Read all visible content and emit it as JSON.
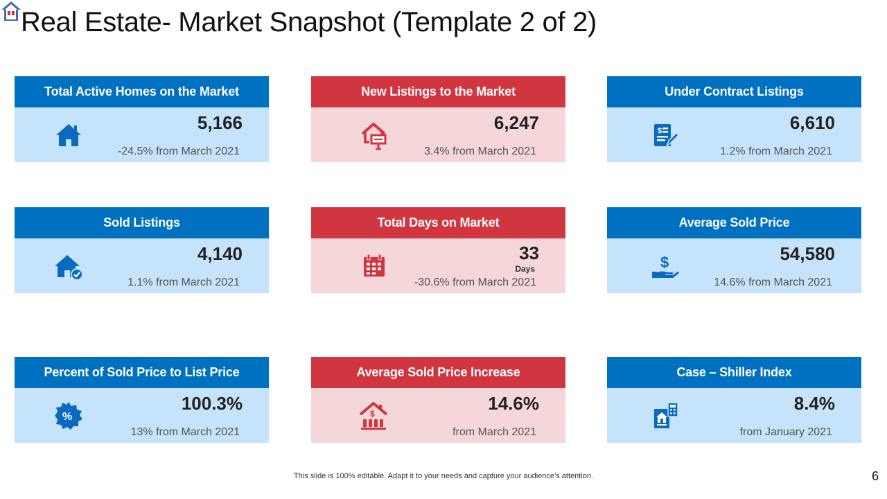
{
  "slide": {
    "title": "Real Estate- Market Snapshot (Template 2 of 2)",
    "footer": "This slide is 100% editable. Adapt it to your needs and capture your audience’s attention.",
    "page_number": "6"
  },
  "colors": {
    "blue_header": "#0070c0",
    "blue_body": "#c5e3fa",
    "red_header": "#d13640",
    "red_body": "#f5d6d9"
  },
  "cards": [
    {
      "title": "Total Active Homes on the Market",
      "value": "5,166",
      "change": "-24.5% from March 2021",
      "icon": "house-icon"
    },
    {
      "title": "New Listings to the Market",
      "value": "6,247",
      "change": "3.4% from March 2021",
      "icon": "house-for-sale-icon"
    },
    {
      "title": "Under Contract Listings",
      "value": "6,610",
      "change": "1.2% from March 2021",
      "icon": "contract-sign-icon"
    },
    {
      "title": "Sold Listings",
      "value": "4,140",
      "change": "1.1% from March 2021",
      "icon": "house-check-icon"
    },
    {
      "title": "Total Days on Market",
      "value": "33",
      "unit": "Days",
      "change": "-30.6% from March 2021",
      "icon": "calendar-icon"
    },
    {
      "title": "Average Sold Price",
      "value": "54,580",
      "change": "14.6% from March 2021",
      "icon": "dollar-hand-icon"
    },
    {
      "title": "Percent of Sold Price to List Price",
      "value": "100.3%",
      "change": "13% from March 2021",
      "icon": "percent-badge-icon"
    },
    {
      "title": "Average Sold Price Increase",
      "value": "14.6%",
      "change": "from March 2021",
      "icon": "house-dollar-icon"
    },
    {
      "title": "Case – Shiller Index",
      "value": "8.4%",
      "change": "from January  2021",
      "icon": "calculator-document-icon"
    }
  ]
}
